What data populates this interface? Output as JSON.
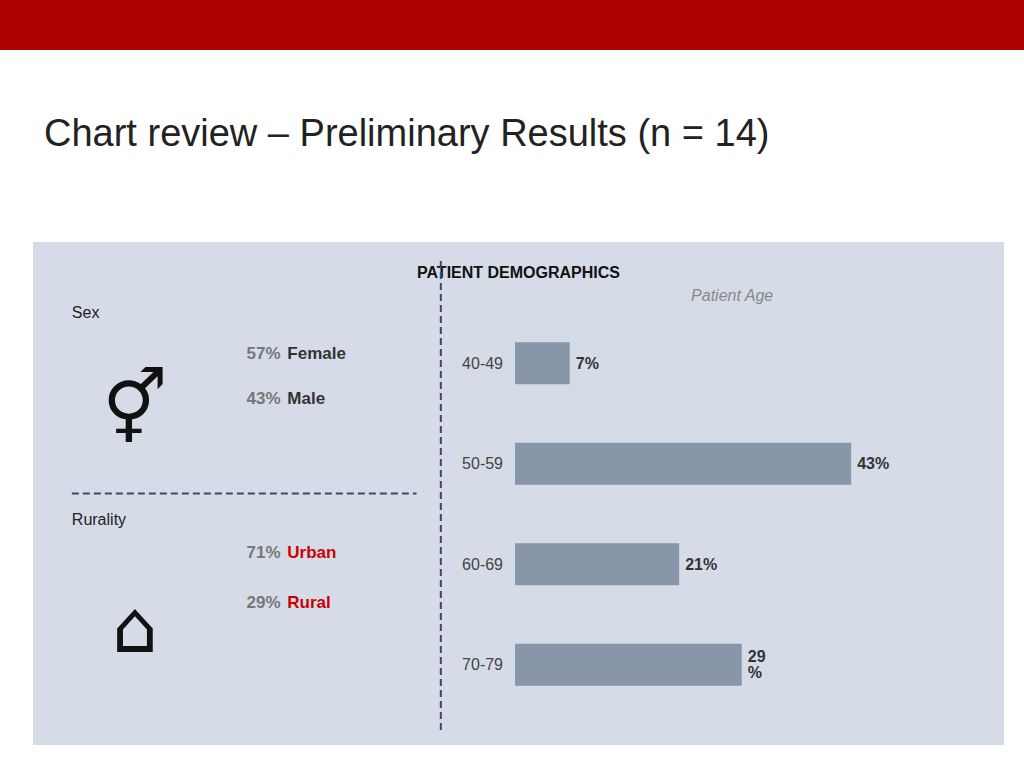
{
  "chart_data": {
    "type": "bar",
    "orientation": "horizontal",
    "title": "Chart review – Preliminary Results (n = 14)",
    "header_color": "#aa0000",
    "panel_title": "PATIENT DEMOGRAPHICS",
    "panel_color": "#d5dce8",
    "divider_color": "#444466",
    "sex": {
      "label": "Sex",
      "symbol": "⚥",
      "values": [
        57,
        43
      ],
      "value_labels": [
        "57%",
        "43%"
      ],
      "categories": [
        "Female",
        "Male"
      ],
      "value_color": "#777777",
      "colors": [
        "#333333",
        "#333333"
      ]
    },
    "rurality": {
      "label": "Rurality",
      "symbol": "⌂",
      "values": [
        71,
        29
      ],
      "value_labels": [
        "71%",
        "29%"
      ],
      "categories": [
        "Urban",
        "Rural"
      ],
      "value_color": "#777777",
      "colors": [
        "#cc0000",
        "#cc0000"
      ]
    },
    "subtitle": "Patient Age",
    "categories": [
      "40-49",
      "50-59",
      "60-69",
      "70-79"
    ],
    "values": [
      7,
      43,
      21,
      29
    ],
    "value_labels": [
      "7%",
      "43%",
      "21%",
      "29\n%"
    ],
    "data_labels": true,
    "color": "#8796a8",
    "xlim": [
      0,
      55
    ],
    "grid": false,
    "tick_labels": "y"
  }
}
